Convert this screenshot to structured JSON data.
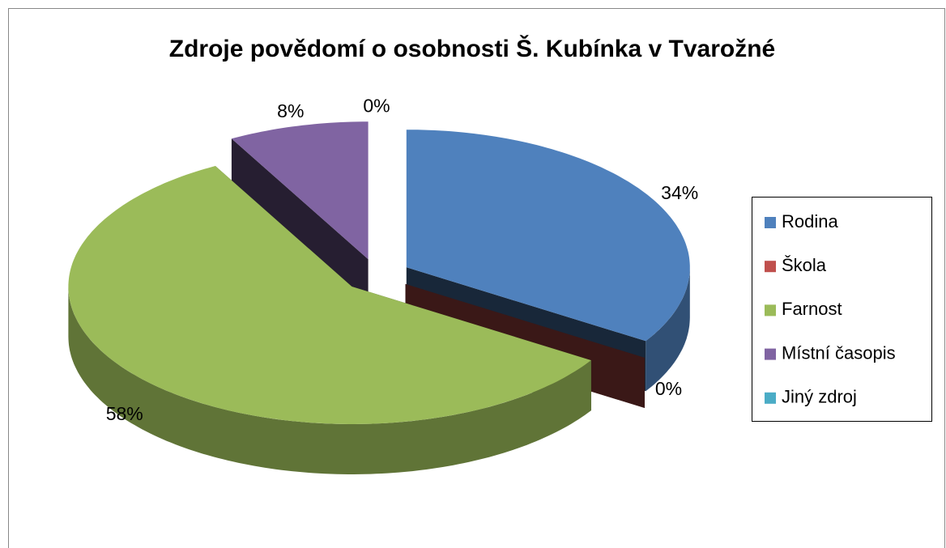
{
  "chart_data": {
    "type": "pie",
    "title": "Zdroje povědomí o osobnosti Š. Kubínka v Tvarožné",
    "categories": [
      "Rodina",
      "Škola",
      "Farnost",
      "Místní časopis",
      "Jiný zdroj"
    ],
    "values": [
      34,
      0,
      58,
      8,
      0
    ],
    "value_labels": [
      "34%",
      "0%",
      "58%",
      "8%",
      "0%"
    ],
    "colors": [
      "#4f81bd",
      "#c0504d",
      "#9bbb59",
      "#8064a2",
      "#4bacc6"
    ],
    "legend": "right"
  }
}
